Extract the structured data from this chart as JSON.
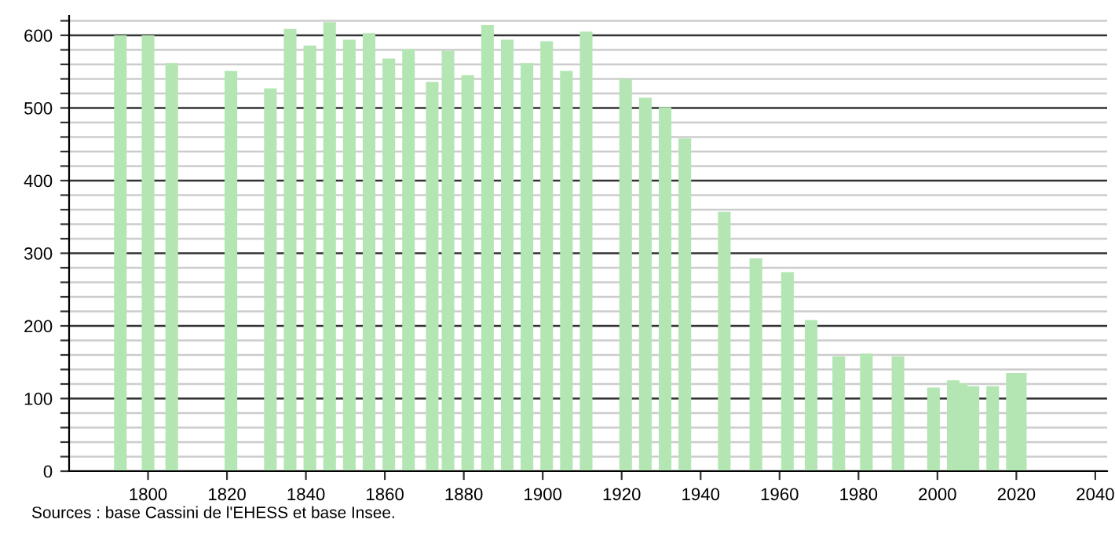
{
  "chart_data": {
    "type": "bar",
    "x": [
      1793,
      1800,
      1806,
      1821,
      1831,
      1836,
      1841,
      1846,
      1851,
      1856,
      1861,
      1866,
      1872,
      1876,
      1881,
      1886,
      1891,
      1896,
      1901,
      1906,
      1911,
      1921,
      1926,
      1931,
      1936,
      1946,
      1954,
      1962,
      1968,
      1975,
      1982,
      1990,
      1999,
      2004,
      2006,
      2009,
      2014,
      2019,
      2021
    ],
    "values": [
      600,
      600,
      562,
      551,
      527,
      609,
      586,
      618,
      594,
      603,
      568,
      581,
      536,
      579,
      545,
      614,
      594,
      562,
      592,
      551,
      605,
      540,
      514,
      501,
      458,
      357,
      293,
      274,
      208,
      158,
      162,
      158,
      115,
      125,
      121,
      117,
      117,
      135,
      135
    ],
    "color": "#b3e6b3",
    "xlim": [
      1780,
      2043
    ],
    "xticks": [
      1800,
      1820,
      1840,
      1860,
      1880,
      1900,
      1920,
      1940,
      1960,
      1980,
      2000,
      2020,
      2040
    ],
    "ylim": [
      0,
      627
    ],
    "yticks": [
      0,
      {
        "value": 20,
        "label": null
      },
      {
        "value": 40,
        "label": null
      },
      {
        "value": 60,
        "label": null
      },
      {
        "value": 80,
        "label": null
      },
      100,
      {
        "value": 120,
        "label": null
      },
      {
        "value": 140,
        "label": null
      },
      {
        "value": 160,
        "label": null
      },
      {
        "value": 180,
        "label": null
      },
      200,
      {
        "value": 220,
        "label": null
      },
      {
        "value": 240,
        "label": null
      },
      {
        "value": 260,
        "label": null
      },
      {
        "value": 280,
        "label": null
      },
      300,
      {
        "value": 320,
        "label": null
      },
      {
        "value": 340,
        "label": null
      },
      {
        "value": 360,
        "label": null
      },
      {
        "value": 380,
        "label": null
      },
      400,
      {
        "value": 420,
        "label": null
      },
      {
        "value": 440,
        "label": null
      },
      {
        "value": 460,
        "label": null
      },
      {
        "value": 480,
        "label": null
      },
      500,
      {
        "value": 520,
        "label": null
      },
      {
        "value": 540,
        "label": null
      },
      {
        "value": 560,
        "label": null
      },
      {
        "value": 580,
        "label": null
      },
      600,
      {
        "value": 620,
        "label": null
      }
    ],
    "grid": "y",
    "annotations": [
      "Sources : base Cassini de l'EHESS et base Insee."
    ]
  }
}
